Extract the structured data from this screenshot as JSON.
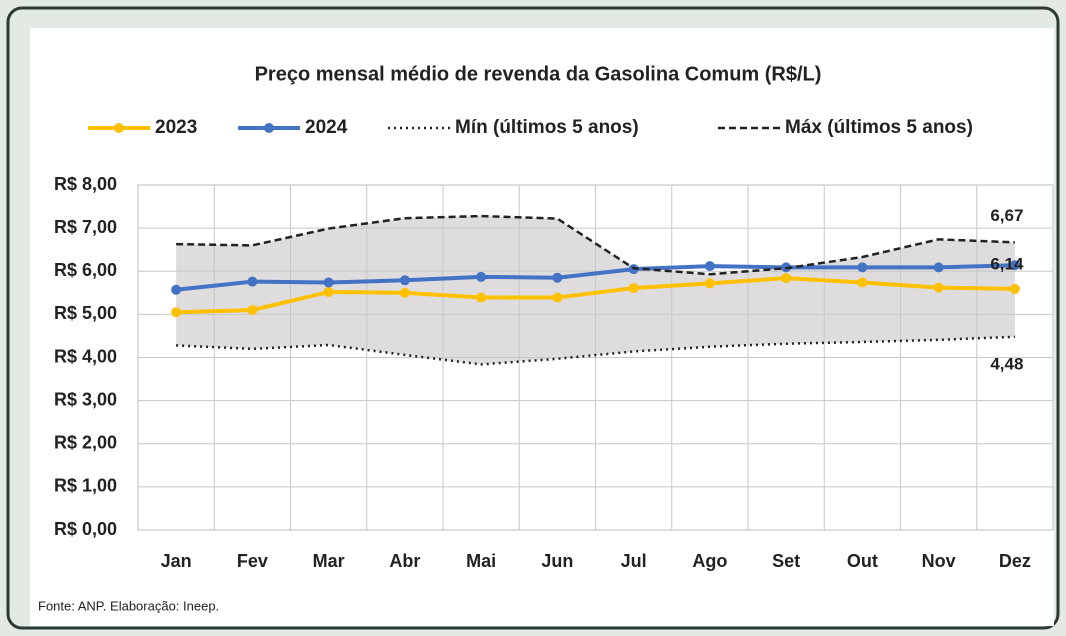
{
  "chart_data": {
    "type": "line",
    "title": "Preço mensal médio de revenda da Gasolina Comum (R$/L)",
    "source": "Fonte: ANP. Elaboração: Ineep.",
    "categories": [
      "Jan",
      "Fev",
      "Mar",
      "Abr",
      "Mai",
      "Jun",
      "Jul",
      "Ago",
      "Set",
      "Out",
      "Nov",
      "Dez"
    ],
    "series": [
      {
        "name": "2023",
        "color": "#ffc000",
        "style": "solid",
        "marker": true,
        "values": [
          5.05,
          5.1,
          5.52,
          5.5,
          5.39,
          5.39,
          5.61,
          5.72,
          5.84,
          5.74,
          5.62,
          5.59
        ]
      },
      {
        "name": "2024",
        "color": "#4472c4",
        "style": "solid",
        "marker": true,
        "values": [
          5.57,
          5.76,
          5.74,
          5.79,
          5.87,
          5.85,
          6.05,
          6.12,
          6.09,
          6.09,
          6.09,
          6.14
        ],
        "value_labels": [
          null,
          null,
          null,
          null,
          null,
          null,
          null,
          null,
          null,
          null,
          null,
          "6,14"
        ]
      },
      {
        "name": "Mín (últimos 5 anos)",
        "color": "#222222",
        "style": "dotted",
        "marker": false,
        "values": [
          4.28,
          4.2,
          4.29,
          4.06,
          3.84,
          3.97,
          4.14,
          4.25,
          4.32,
          4.36,
          4.41,
          4.48
        ],
        "value_labels": [
          null,
          null,
          null,
          null,
          null,
          null,
          null,
          null,
          null,
          null,
          null,
          "4,48"
        ]
      },
      {
        "name": "Máx (últimos 5 anos)",
        "color": "#222222",
        "style": "dashed",
        "marker": false,
        "values": [
          6.63,
          6.6,
          6.99,
          7.23,
          7.28,
          7.22,
          6.07,
          5.93,
          6.07,
          6.33,
          6.74,
          6.67
        ],
        "value_labels": [
          null,
          null,
          null,
          null,
          null,
          null,
          null,
          null,
          null,
          null,
          null,
          "6,67"
        ]
      }
    ],
    "range_fill": "#dedcdc",
    "ylim": [
      0,
      8
    ],
    "yticks": [
      {
        "value": 0,
        "label": "R$ 0,00"
      },
      {
        "value": 1,
        "label": "R$ 1,00"
      },
      {
        "value": 2,
        "label": "R$ 2,00"
      },
      {
        "value": 3,
        "label": "R$ 3,00"
      },
      {
        "value": 4,
        "label": "R$ 4,00"
      },
      {
        "value": 5,
        "label": "R$ 5,00"
      },
      {
        "value": 6,
        "label": "R$ 6,00"
      },
      {
        "value": 7,
        "label": "R$ 7,00"
      },
      {
        "value": 8,
        "label": "R$ 8,00"
      }
    ],
    "grid": true
  }
}
